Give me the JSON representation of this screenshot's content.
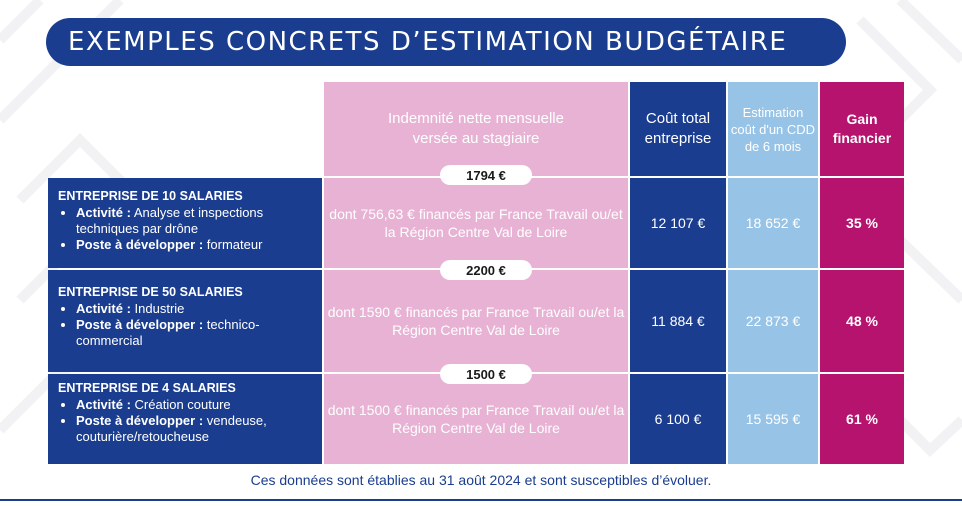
{
  "title": "EXEMPLES CONCRETS D’ESTIMATION BUDGÉTAIRE",
  "headers": {
    "indemnite": "Indemnité nette mensuelle versée au stagiaire",
    "cout_total": "Coût total entreprise",
    "estimation_cdd": "Estimation coût d'un CDD de 6 mois",
    "gain": "Gain financier"
  },
  "rows": [
    {
      "company": "ENTREPRISE DE 10 SALARIES",
      "activite_label": "Activité :",
      "activite": "Analyse et inspections techniques par drône",
      "poste_label": "Poste à développer :",
      "poste": "formateur",
      "amount": "1794 €",
      "financement": "dont 756,63 € financés par France Travail ou/et la Région Centre Val de Loire",
      "cout_total": "12 107 €",
      "estimation_cdd": "18 652 €",
      "gain": "35 %"
    },
    {
      "company": "ENTREPRISE DE 50 SALARIES",
      "activite_label": "Activité :",
      "activite": "Industrie",
      "poste_label": "Poste à développer :",
      "poste": "technico-commercial",
      "amount": "2200 €",
      "financement": "dont 1590 € financés par France Travail ou/et la Région Centre Val de Loire",
      "cout_total": "11 884 €",
      "estimation_cdd": "22 873 €",
      "gain": "48 %"
    },
    {
      "company": "ENTREPRISE DE 4 SALARIES",
      "activite_label": "Activité :",
      "activite": "Création couture",
      "poste_label": "Poste à développer :",
      "poste": "vendeuse, couturière/retoucheuse",
      "amount": "1500 €",
      "financement": "dont 1500 € financés par France Travail ou/et la Région Centre Val de Loire",
      "cout_total": "6 100 €",
      "estimation_cdd": "15 595 €",
      "gain": "61 %"
    }
  ],
  "footer": "Ces données sont établies au 31 août 2024 et sont susceptibles d’évoluer.",
  "colors": {
    "navy": "#1a3d8f",
    "pink": "#e7b2d4",
    "light_blue": "#96c3e6",
    "magenta": "#b5136e"
  }
}
